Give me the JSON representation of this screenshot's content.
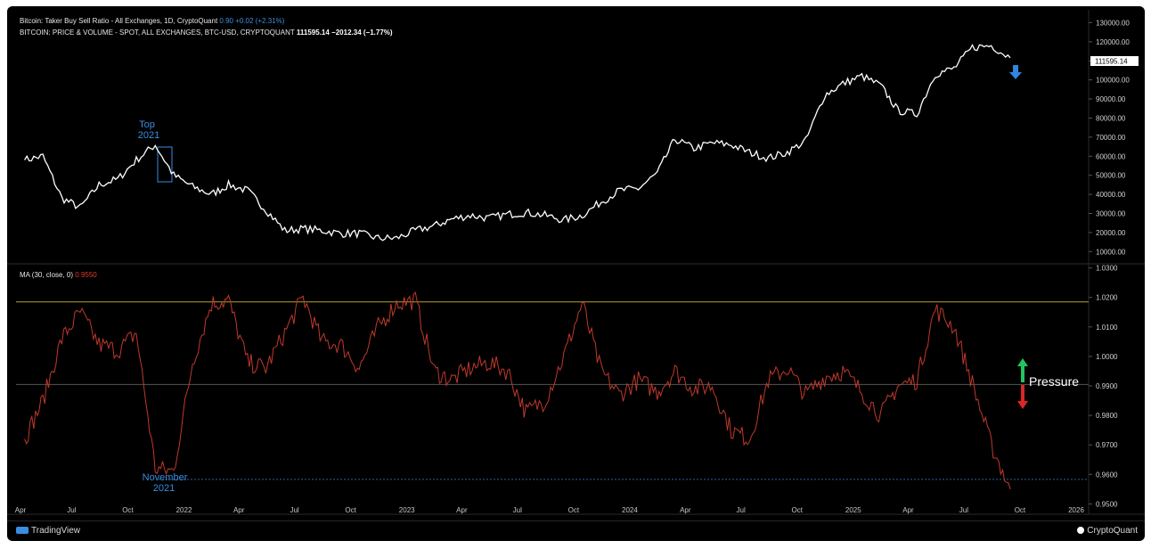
{
  "header": {
    "top_title": "Bitcoin: Taker Buy Sell Ratio - All Exchanges, 1D, CryptoQuant",
    "top_values": "0.90  +0.02 (+2.31%)",
    "price_title": "BITCOIN: PRICE & VOLUME - SPOT, ALL EXCHANGES, BTC-USD, CRYPTOQUANT",
    "price_values": "111595.14  −2012.34 (−1.77%)",
    "ma_title": "MA (30, close, 0)",
    "ma_value": "0.9550"
  },
  "annotations": {
    "top_label_line1": "Top",
    "top_label_line2": "2021",
    "nov_label_line1": "November",
    "nov_label_line2": "2021",
    "pressure": "Pressure",
    "price_tag": "111595.14"
  },
  "footer": {
    "left_brand": "TradingView",
    "right_brand": "CryptoQuant"
  },
  "colors": {
    "price_line": "#ffffff",
    "ma_line": "#c0392b",
    "upper_line": "#b8a12a",
    "annotation": "#3a8de0",
    "arrow_up": "#22c55e",
    "arrow_down": "#dc2626"
  },
  "chart_data": [
    {
      "type": "line",
      "title": "BITCOIN: PRICE & VOLUME - SPOT, ALL EXCHANGES, BTC-USD, CRYPTOQUANT",
      "y_ticks": [
        "130000.00",
        "120000.00",
        "110000.00",
        "100000.00",
        "90000.00",
        "80000.00",
        "70000.00",
        "60000.00",
        "50000.00",
        "40000.00",
        "30000.00",
        "20000.00",
        "10000.00"
      ],
      "ylim": [
        5000,
        133000
      ],
      "x_ticks": [
        "Apr",
        "Jul",
        "Oct",
        "2022",
        "Apr",
        "Jul",
        "Oct",
        "2023",
        "Apr",
        "Jul",
        "Oct",
        "2024",
        "Apr",
        "Jul",
        "Oct",
        "2025",
        "Apr",
        "Jul",
        "Oct",
        "2026"
      ],
      "series": [
        {
          "x": [
            "2021-04",
            "2021-05",
            "2021-06",
            "2021-07",
            "2021-08",
            "2021-09",
            "2021-10",
            "2021-11",
            "2021-12",
            "2022-01",
            "2022-02",
            "2022-03",
            "2022-04",
            "2022-05",
            "2022-06",
            "2022-07",
            "2022-08",
            "2022-09",
            "2022-10",
            "2022-11",
            "2022-12",
            "2023-01",
            "2023-02",
            "2023-03",
            "2023-04",
            "2023-05",
            "2023-06",
            "2023-07",
            "2023-08",
            "2023-09",
            "2023-10",
            "2023-11",
            "2023-12",
            "2024-01",
            "2024-02",
            "2024-03",
            "2024-04",
            "2024-05",
            "2024-06",
            "2024-07",
            "2024-08",
            "2024-09",
            "2024-10",
            "2024-11",
            "2024-12",
            "2025-01",
            "2025-02",
            "2025-03",
            "2025-04",
            "2025-05",
            "2025-06",
            "2025-07",
            "2025-08",
            "2025-09"
          ],
          "values": [
            58000,
            60000,
            38000,
            33000,
            45000,
            48000,
            58000,
            66000,
            50000,
            44000,
            40000,
            45000,
            42000,
            32000,
            21000,
            22000,
            21000,
            19500,
            19500,
            17000,
            17000,
            21000,
            23500,
            27000,
            29000,
            27500,
            29500,
            30500,
            29000,
            26500,
            29000,
            36000,
            42000,
            43000,
            51000,
            69000,
            64000,
            67000,
            66000,
            62000,
            59000,
            62000,
            68000,
            92000,
            98000,
            102000,
            97000,
            84000,
            82000,
            103000,
            106000,
            117000,
            118000,
            111595.14
          ]
        }
      ]
    },
    {
      "type": "line",
      "title": "MA (30, close, 0)",
      "y_ticks": [
        "1.0300",
        "1.0200",
        "1.0100",
        "1.0000",
        "0.9900",
        "0.9800",
        "0.9700",
        "0.9600",
        "0.9500"
      ],
      "ylim": [
        0.948,
        1.0305
      ],
      "reference_lines": [
        1.0185,
        0.9905,
        0.9583
      ],
      "series": [
        {
          "x": [
            "2021-04",
            "2021-05",
            "2021-06",
            "2021-07",
            "2021-08",
            "2021-09",
            "2021-10",
            "2021-11",
            "2021-12",
            "2022-01",
            "2022-02",
            "2022-03",
            "2022-04",
            "2022-05",
            "2022-06",
            "2022-07",
            "2022-08",
            "2022-09",
            "2022-10",
            "2022-11",
            "2022-12",
            "2023-01",
            "2023-02",
            "2023-03",
            "2023-04",
            "2023-05",
            "2023-06",
            "2023-07",
            "2023-08",
            "2023-09",
            "2023-10",
            "2023-11",
            "2023-12",
            "2024-01",
            "2024-02",
            "2024-03",
            "2024-04",
            "2024-05",
            "2024-06",
            "2024-07",
            "2024-08",
            "2024-09",
            "2024-10",
            "2024-11",
            "2024-12",
            "2025-01",
            "2025-02",
            "2025-03",
            "2025-04",
            "2025-05",
            "2025-06",
            "2025-07",
            "2025-08",
            "2025-09"
          ],
          "values": [
            0.972,
            0.985,
            1.006,
            1.015,
            1.004,
            1.002,
            1.008,
            0.962,
            0.961,
            0.998,
            1.018,
            1.019,
            0.998,
            0.996,
            1.008,
            1.02,
            1.005,
            1.004,
            0.996,
            1.01,
            1.018,
            1.019,
            0.995,
            0.992,
            0.996,
            0.998,
            0.995,
            0.981,
            0.985,
            1.0,
            1.018,
            0.995,
            0.987,
            0.992,
            0.988,
            0.995,
            0.989,
            0.99,
            0.975,
            0.972,
            0.992,
            0.996,
            0.987,
            0.993,
            0.995,
            0.988,
            0.98,
            0.99,
            0.992,
            1.016,
            1.01,
            0.991,
            0.97,
            0.955
          ]
        }
      ]
    }
  ]
}
